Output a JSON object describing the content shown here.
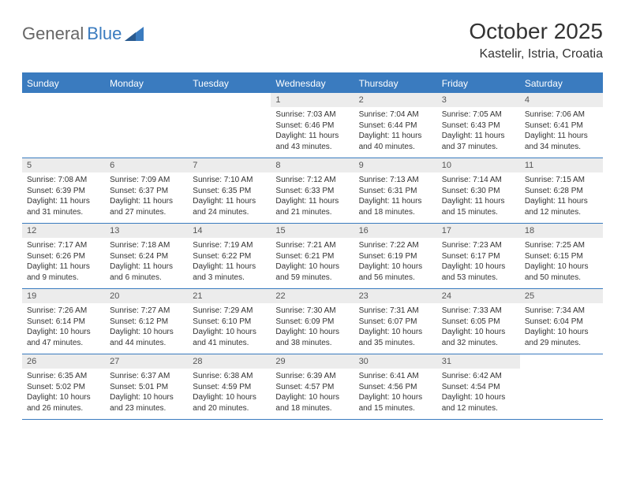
{
  "logo": {
    "text1": "General",
    "text2": "Blue"
  },
  "title": "October 2025",
  "location": "Kastelir, Istria, Croatia",
  "colors": {
    "accent": "#3a7bbf",
    "dayNumBg": "#ececec",
    "text": "#333333",
    "logoGray": "#666666"
  },
  "dayHeaders": [
    "Sunday",
    "Monday",
    "Tuesday",
    "Wednesday",
    "Thursday",
    "Friday",
    "Saturday"
  ],
  "weeks": [
    [
      null,
      null,
      null,
      {
        "n": "1",
        "sr": "7:03 AM",
        "ss": "6:46 PM",
        "dl": "11 hours and 43 minutes."
      },
      {
        "n": "2",
        "sr": "7:04 AM",
        "ss": "6:44 PM",
        "dl": "11 hours and 40 minutes."
      },
      {
        "n": "3",
        "sr": "7:05 AM",
        "ss": "6:43 PM",
        "dl": "11 hours and 37 minutes."
      },
      {
        "n": "4",
        "sr": "7:06 AM",
        "ss": "6:41 PM",
        "dl": "11 hours and 34 minutes."
      }
    ],
    [
      {
        "n": "5",
        "sr": "7:08 AM",
        "ss": "6:39 PM",
        "dl": "11 hours and 31 minutes."
      },
      {
        "n": "6",
        "sr": "7:09 AM",
        "ss": "6:37 PM",
        "dl": "11 hours and 27 minutes."
      },
      {
        "n": "7",
        "sr": "7:10 AM",
        "ss": "6:35 PM",
        "dl": "11 hours and 24 minutes."
      },
      {
        "n": "8",
        "sr": "7:12 AM",
        "ss": "6:33 PM",
        "dl": "11 hours and 21 minutes."
      },
      {
        "n": "9",
        "sr": "7:13 AM",
        "ss": "6:31 PM",
        "dl": "11 hours and 18 minutes."
      },
      {
        "n": "10",
        "sr": "7:14 AM",
        "ss": "6:30 PM",
        "dl": "11 hours and 15 minutes."
      },
      {
        "n": "11",
        "sr": "7:15 AM",
        "ss": "6:28 PM",
        "dl": "11 hours and 12 minutes."
      }
    ],
    [
      {
        "n": "12",
        "sr": "7:17 AM",
        "ss": "6:26 PM",
        "dl": "11 hours and 9 minutes."
      },
      {
        "n": "13",
        "sr": "7:18 AM",
        "ss": "6:24 PM",
        "dl": "11 hours and 6 minutes."
      },
      {
        "n": "14",
        "sr": "7:19 AM",
        "ss": "6:22 PM",
        "dl": "11 hours and 3 minutes."
      },
      {
        "n": "15",
        "sr": "7:21 AM",
        "ss": "6:21 PM",
        "dl": "10 hours and 59 minutes."
      },
      {
        "n": "16",
        "sr": "7:22 AM",
        "ss": "6:19 PM",
        "dl": "10 hours and 56 minutes."
      },
      {
        "n": "17",
        "sr": "7:23 AM",
        "ss": "6:17 PM",
        "dl": "10 hours and 53 minutes."
      },
      {
        "n": "18",
        "sr": "7:25 AM",
        "ss": "6:15 PM",
        "dl": "10 hours and 50 minutes."
      }
    ],
    [
      {
        "n": "19",
        "sr": "7:26 AM",
        "ss": "6:14 PM",
        "dl": "10 hours and 47 minutes."
      },
      {
        "n": "20",
        "sr": "7:27 AM",
        "ss": "6:12 PM",
        "dl": "10 hours and 44 minutes."
      },
      {
        "n": "21",
        "sr": "7:29 AM",
        "ss": "6:10 PM",
        "dl": "10 hours and 41 minutes."
      },
      {
        "n": "22",
        "sr": "7:30 AM",
        "ss": "6:09 PM",
        "dl": "10 hours and 38 minutes."
      },
      {
        "n": "23",
        "sr": "7:31 AM",
        "ss": "6:07 PM",
        "dl": "10 hours and 35 minutes."
      },
      {
        "n": "24",
        "sr": "7:33 AM",
        "ss": "6:05 PM",
        "dl": "10 hours and 32 minutes."
      },
      {
        "n": "25",
        "sr": "7:34 AM",
        "ss": "6:04 PM",
        "dl": "10 hours and 29 minutes."
      }
    ],
    [
      {
        "n": "26",
        "sr": "6:35 AM",
        "ss": "5:02 PM",
        "dl": "10 hours and 26 minutes."
      },
      {
        "n": "27",
        "sr": "6:37 AM",
        "ss": "5:01 PM",
        "dl": "10 hours and 23 minutes."
      },
      {
        "n": "28",
        "sr": "6:38 AM",
        "ss": "4:59 PM",
        "dl": "10 hours and 20 minutes."
      },
      {
        "n": "29",
        "sr": "6:39 AM",
        "ss": "4:57 PM",
        "dl": "10 hours and 18 minutes."
      },
      {
        "n": "30",
        "sr": "6:41 AM",
        "ss": "4:56 PM",
        "dl": "10 hours and 15 minutes."
      },
      {
        "n": "31",
        "sr": "6:42 AM",
        "ss": "4:54 PM",
        "dl": "10 hours and 12 minutes."
      },
      null
    ]
  ],
  "labels": {
    "sunrise": "Sunrise:",
    "sunset": "Sunset:",
    "daylight": "Daylight:"
  }
}
